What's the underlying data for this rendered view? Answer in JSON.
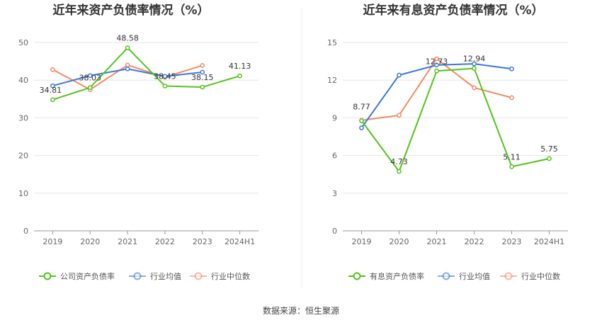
{
  "source": "数据来源：恒生聚源",
  "colors": {
    "company": "#52c41a",
    "industry_avg": "#3a78d8",
    "industry_median": "#f28b62",
    "grid": "#e6e6e6",
    "axis": "#999999"
  },
  "chart_data": [
    {
      "type": "line",
      "title": "近年来资产负债率情况（%）",
      "categories": [
        "2019",
        "2020",
        "2021",
        "2022",
        "2023",
        "2024H1"
      ],
      "ylim": [
        0,
        50
      ],
      "yticks": [
        "0",
        "10",
        "20",
        "30",
        "40",
        "50"
      ],
      "grid": true,
      "legend_position": "bottom",
      "series": [
        {
          "name": "公司资产负债率",
          "color_key": "company",
          "values": [
            34.81,
            38.03,
            48.58,
            38.45,
            38.15,
            41.13
          ],
          "labels": [
            "34.81",
            "38.03",
            "48.58",
            "38.45",
            "38.15",
            "41.13"
          ]
        },
        {
          "name": "行业均值",
          "color_key": "industry_avg",
          "values": [
            38.5,
            41.2,
            43.0,
            41.0,
            42.1,
            null
          ]
        },
        {
          "name": "行业中位数",
          "color_key": "industry_median",
          "values": [
            42.8,
            37.5,
            44.0,
            40.8,
            43.9,
            null
          ]
        }
      ]
    },
    {
      "type": "line",
      "title": "近年来有息资产负债率情况（%）",
      "categories": [
        "2019",
        "2020",
        "2021",
        "2022",
        "2023",
        "2024H1"
      ],
      "ylim": [
        0,
        15
      ],
      "yticks": [
        "0",
        "3",
        "6",
        "9",
        "12",
        "15"
      ],
      "grid": true,
      "legend_position": "bottom",
      "series": [
        {
          "name": "有息资产负债率",
          "color_key": "company",
          "values": [
            8.77,
            4.73,
            12.73,
            12.94,
            5.11,
            5.75
          ],
          "labels": [
            "8.77",
            "4.73",
            "12.73",
            "12.94",
            "5.11",
            "5.75"
          ]
        },
        {
          "name": "行业均值",
          "color_key": "industry_avg",
          "values": [
            8.2,
            12.4,
            13.2,
            13.3,
            12.9,
            null
          ]
        },
        {
          "name": "行业中位数",
          "color_key": "industry_median",
          "values": [
            8.8,
            9.2,
            13.7,
            11.4,
            10.6,
            null
          ]
        }
      ]
    }
  ]
}
